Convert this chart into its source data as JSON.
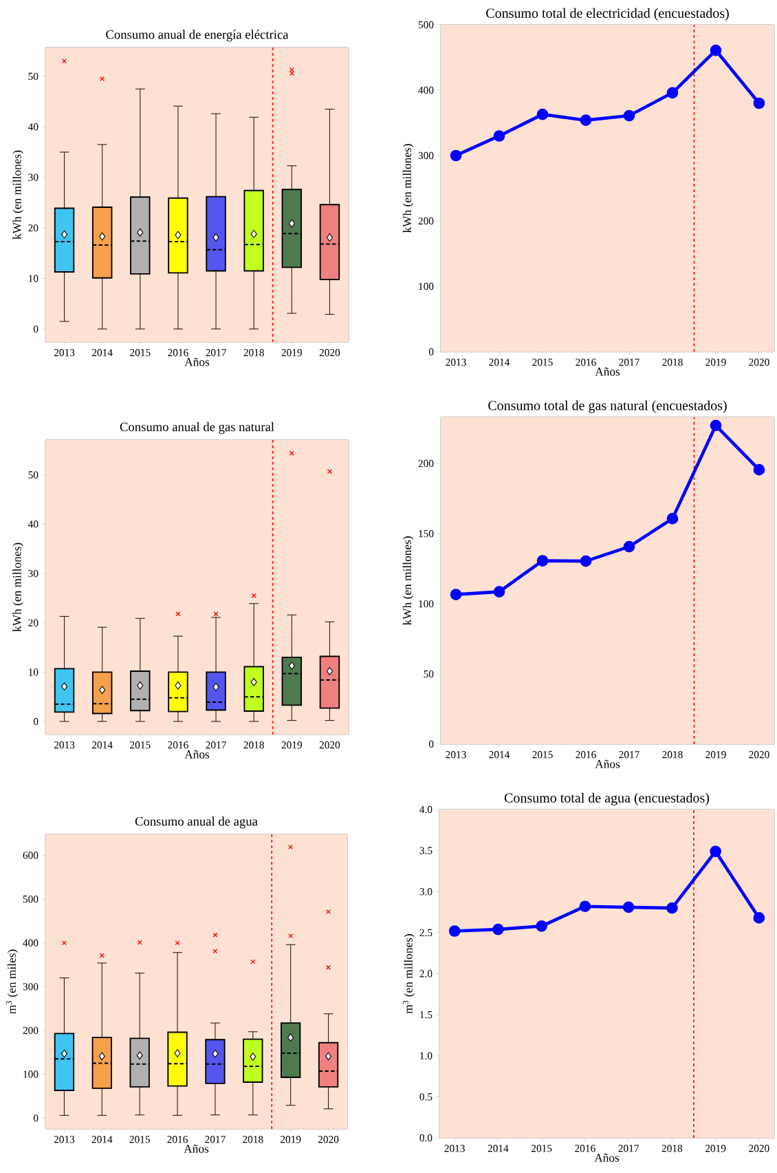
{
  "chart_data": [
    {
      "type": "box",
      "title": "Consumo anual de energía eléctrica",
      "xlabel": "Años",
      "ylabel": "kWh (en millones)",
      "x": [
        2013,
        2014,
        2015,
        2016,
        2017,
        2018,
        2019,
        2020
      ],
      "xlim": [
        2012.5,
        2020.5
      ],
      "xticks": [
        2013,
        2014,
        2015,
        2016,
        2017,
        2018,
        2019,
        2020
      ],
      "ylim": [
        -2.6,
        55.7
      ],
      "yticks": [
        0,
        10,
        20,
        30,
        40,
        50
      ],
      "colors": [
        "#40c4f0",
        "#f5a04a",
        "#b0b0b0",
        "#ffff00",
        "#5555f0",
        "#c0ff20",
        "#4e7a50",
        "#f08080"
      ],
      "boxes": [
        {
          "low": 1.5,
          "q1": 11.3,
          "median": 17.3,
          "q3": 23.9,
          "high": 35.0,
          "mean": 18.7,
          "outliers": [
            53.0
          ]
        },
        {
          "low": 0,
          "q1": 10.1,
          "median": 16.6,
          "q3": 24.1,
          "high": 36.5,
          "mean": 18.3,
          "outliers": [
            49.5
          ]
        },
        {
          "low": 0,
          "q1": 10.9,
          "median": 17.4,
          "q3": 26.1,
          "high": 47.5,
          "mean": 19.1
        },
        {
          "low": 0,
          "q1": 11.1,
          "median": 17.3,
          "q3": 25.9,
          "high": 44.1,
          "mean": 18.6
        },
        {
          "low": 0,
          "q1": 11.5,
          "median": 15.7,
          "q3": 26.2,
          "high": 42.6,
          "mean": 18.1
        },
        {
          "low": 0,
          "q1": 11.5,
          "median": 16.7,
          "q3": 27.4,
          "high": 41.9,
          "mean": 18.8
        },
        {
          "low": 3.1,
          "q1": 12.2,
          "median": 18.9,
          "q3": 27.6,
          "high": 32.3,
          "mean": 20.9,
          "outliers": [
            51.3,
            50.6
          ]
        },
        {
          "low": 2.9,
          "q1": 9.8,
          "median": 16.8,
          "q3": 24.6,
          "high": 43.5,
          "mean": 18.1
        }
      ],
      "ref_lines": [
        {
          "axis": "x",
          "value": 2018.5,
          "color": "#ff0000",
          "line_style": "dashed"
        }
      ]
    },
    {
      "type": "line",
      "title": "Consumo total de electricidad (encuestados)",
      "xlabel": "Años",
      "ylabel": "kWh (en millones)",
      "x": [
        2013,
        2014,
        2015,
        2016,
        2017,
        2018,
        2019,
        2020
      ],
      "xlim": [
        2012.65,
        2020.35
      ],
      "xticks": [
        2013,
        2014,
        2015,
        2016,
        2017,
        2018,
        2019,
        2020
      ],
      "ylim": [
        0,
        500
      ],
      "yticks": [
        0,
        100,
        200,
        300,
        400,
        500
      ],
      "values": [
        300,
        330,
        363,
        354,
        361,
        396,
        461,
        380
      ],
      "color": "#0000ff",
      "marker": "circle",
      "line_style": "solid",
      "ref_lines": [
        {
          "axis": "x",
          "value": 2018.5,
          "color": "#ff0000",
          "line_style": "dashed"
        }
      ]
    },
    {
      "type": "box",
      "title": "Consumo anual de gas natural",
      "xlabel": "Años",
      "ylabel": "kWh (en millones)",
      "x": [
        2013,
        2014,
        2015,
        2016,
        2017,
        2018,
        2019,
        2020
      ],
      "xlim": [
        2012.5,
        2020.5
      ],
      "xticks": [
        2013,
        2014,
        2015,
        2016,
        2017,
        2018,
        2019,
        2020
      ],
      "ylim": [
        -2.65,
        57.1
      ],
      "yticks": [
        0,
        10,
        20,
        30,
        40,
        50
      ],
      "colors": [
        "#40c4f0",
        "#f5a04a",
        "#b0b0b0",
        "#ffff00",
        "#5555f0",
        "#c0ff20",
        "#4e7a50",
        "#f08080"
      ],
      "boxes": [
        {
          "low": 0,
          "q1": 1.9,
          "median": 3.5,
          "q3": 10.7,
          "high": 21.3,
          "mean": 7.1
        },
        {
          "low": 0,
          "q1": 1.6,
          "median": 3.6,
          "q3": 10.0,
          "high": 19.1,
          "mean": 6.4
        },
        {
          "low": 0,
          "q1": 2.2,
          "median": 4.5,
          "q3": 10.2,
          "high": 20.9,
          "mean": 7.3
        },
        {
          "low": 0,
          "q1": 2.0,
          "median": 4.8,
          "q3": 10.0,
          "high": 17.3,
          "mean": 7.3,
          "outliers": [
            21.8
          ]
        },
        {
          "low": 0,
          "q1": 2.3,
          "median": 3.9,
          "q3": 10.0,
          "high": 21.1,
          "mean": 7.0,
          "outliers": [
            21.8
          ]
        },
        {
          "low": 0,
          "q1": 2.1,
          "median": 5.0,
          "q3": 11.1,
          "high": 23.9,
          "mean": 8.0,
          "outliers": [
            25.5
          ]
        },
        {
          "low": 0.2,
          "q1": 3.3,
          "median": 9.7,
          "q3": 13.0,
          "high": 21.6,
          "mean": 11.3,
          "outliers": [
            54.4
          ]
        },
        {
          "low": 0.2,
          "q1": 2.7,
          "median": 8.4,
          "q3": 13.2,
          "high": 20.2,
          "mean": 10.2,
          "outliers": [
            50.7
          ]
        }
      ],
      "ref_lines": [
        {
          "axis": "x",
          "value": 2018.5,
          "color": "#ff0000",
          "line_style": "dashed"
        }
      ]
    },
    {
      "type": "line",
      "title": "Consumo total de gas natural (encuestados)",
      "xlabel": "Años",
      "ylabel": "kWh (en millones)",
      "x": [
        2013,
        2014,
        2015,
        2016,
        2017,
        2018,
        2019,
        2020
      ],
      "xlim": [
        2012.65,
        2020.35
      ],
      "xticks": [
        2013,
        2014,
        2015,
        2016,
        2017,
        2018,
        2019,
        2020
      ],
      "ylim": [
        0,
        233
      ],
      "yticks": [
        0,
        50,
        100,
        150,
        200
      ],
      "values": [
        106.6,
        108.6,
        130.7,
        130.4,
        140.7,
        160.7,
        227.1,
        195.5
      ],
      "color": "#0000ff",
      "marker": "circle",
      "line_style": "solid",
      "ref_lines": [
        {
          "axis": "x",
          "value": 2018.5,
          "color": "#ff0000",
          "line_style": "dashed"
        }
      ]
    },
    {
      "type": "box",
      "title": "Consumo anual de agua",
      "xlabel": "Años",
      "ylabel": "m$^{3}$ (en miles)",
      "x": [
        2013,
        2014,
        2015,
        2016,
        2017,
        2018,
        2019,
        2020
      ],
      "xlim": [
        2012.5,
        2020.5
      ],
      "xticks": [
        2013,
        2014,
        2015,
        2016,
        2017,
        2018,
        2019,
        2020
      ],
      "ylim": [
        -25,
        648
      ],
      "yticks": [
        0,
        100,
        200,
        300,
        400,
        500,
        600
      ],
      "colors": [
        "#40c4f0",
        "#f5a04a",
        "#b0b0b0",
        "#ffff00",
        "#5555f0",
        "#c0ff20",
        "#4e7a50",
        "#f08080"
      ],
      "boxes": [
        {
          "low": 6,
          "q1": 63,
          "median": 135,
          "q3": 193,
          "high": 320,
          "mean": 147,
          "outliers": [
            400
          ]
        },
        {
          "low": 6,
          "q1": 68,
          "median": 125,
          "q3": 184,
          "high": 354,
          "mean": 141,
          "outliers": [
            371
          ]
        },
        {
          "low": 7,
          "q1": 71,
          "median": 123,
          "q3": 182,
          "high": 331,
          "mean": 143,
          "outliers": [
            401
          ]
        },
        {
          "low": 6,
          "q1": 73,
          "median": 124,
          "q3": 196,
          "high": 378,
          "mean": 148,
          "outliers": [
            400
          ]
        },
        {
          "low": 7,
          "q1": 79,
          "median": 123,
          "q3": 179,
          "high": 217,
          "mean": 147,
          "outliers": [
            418,
            381
          ]
        },
        {
          "low": 7,
          "q1": 82,
          "median": 118,
          "q3": 180,
          "high": 197,
          "mean": 140,
          "outliers": [
            357
          ]
        },
        {
          "low": 29,
          "q1": 93,
          "median": 148,
          "q3": 217,
          "high": 396,
          "mean": 184,
          "outliers": [
            619,
            416
          ]
        },
        {
          "low": 21,
          "q1": 71,
          "median": 107,
          "q3": 172,
          "high": 238,
          "mean": 141,
          "outliers": [
            471,
            344
          ]
        }
      ],
      "ref_lines": [
        {
          "axis": "x",
          "value": 2018.5,
          "color": "#ff0000",
          "line_style": "dashed"
        }
      ]
    },
    {
      "type": "line",
      "title": "Consumo total de agua (encuestados)",
      "xlabel": "Años",
      "ylabel": "m$^{3}$ (en millones)",
      "x": [
        2013,
        2014,
        2015,
        2016,
        2017,
        2018,
        2019,
        2020
      ],
      "xlim": [
        2012.65,
        2020.35
      ],
      "xticks": [
        2013,
        2014,
        2015,
        2016,
        2017,
        2018,
        2019,
        2020
      ],
      "ylim": [
        0,
        4.0
      ],
      "yticks": [
        {
          "value": 0,
          "label": "0.0"
        },
        0.5,
        {
          "value": 1,
          "label": "1.0"
        },
        1.5,
        {
          "value": 2,
          "label": "2.0"
        },
        2.5,
        {
          "value": 3,
          "label": "3.0"
        },
        3.5,
        {
          "value": 4,
          "label": "4.0"
        }
      ],
      "values": [
        2.52,
        2.54,
        2.58,
        2.82,
        2.81,
        2.8,
        3.49,
        2.68
      ],
      "color": "#0000ff",
      "marker": "circle",
      "line_style": "solid",
      "ref_lines": [
        {
          "axis": "x",
          "value": 2018.5,
          "color": "#ff0000",
          "line_style": "dashed"
        }
      ]
    }
  ]
}
